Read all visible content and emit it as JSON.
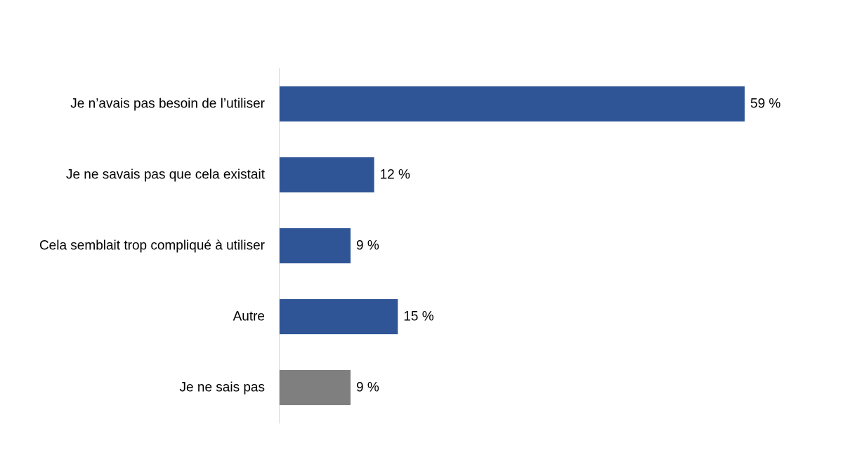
{
  "chart_data": {
    "type": "bar",
    "orientation": "horizontal",
    "categories": [
      "Je n’avais pas besoin de l’utiliser",
      "Je ne savais pas que cela existait",
      "Cela semblait trop compliqué à utiliser",
      "Autre",
      "Je ne sais pas"
    ],
    "values": [
      59,
      12,
      9,
      15,
      9
    ],
    "value_labels": [
      "59 %",
      "12 %",
      "9 %",
      "15 %",
      "9 %"
    ],
    "bar_colors": [
      "#2F5597",
      "#2F5597",
      "#2F5597",
      "#2F5597",
      "#7F7F7F"
    ],
    "xlim": [
      0,
      60
    ],
    "grid": false,
    "legend": "none",
    "axis_color": "#D9D9D9"
  }
}
